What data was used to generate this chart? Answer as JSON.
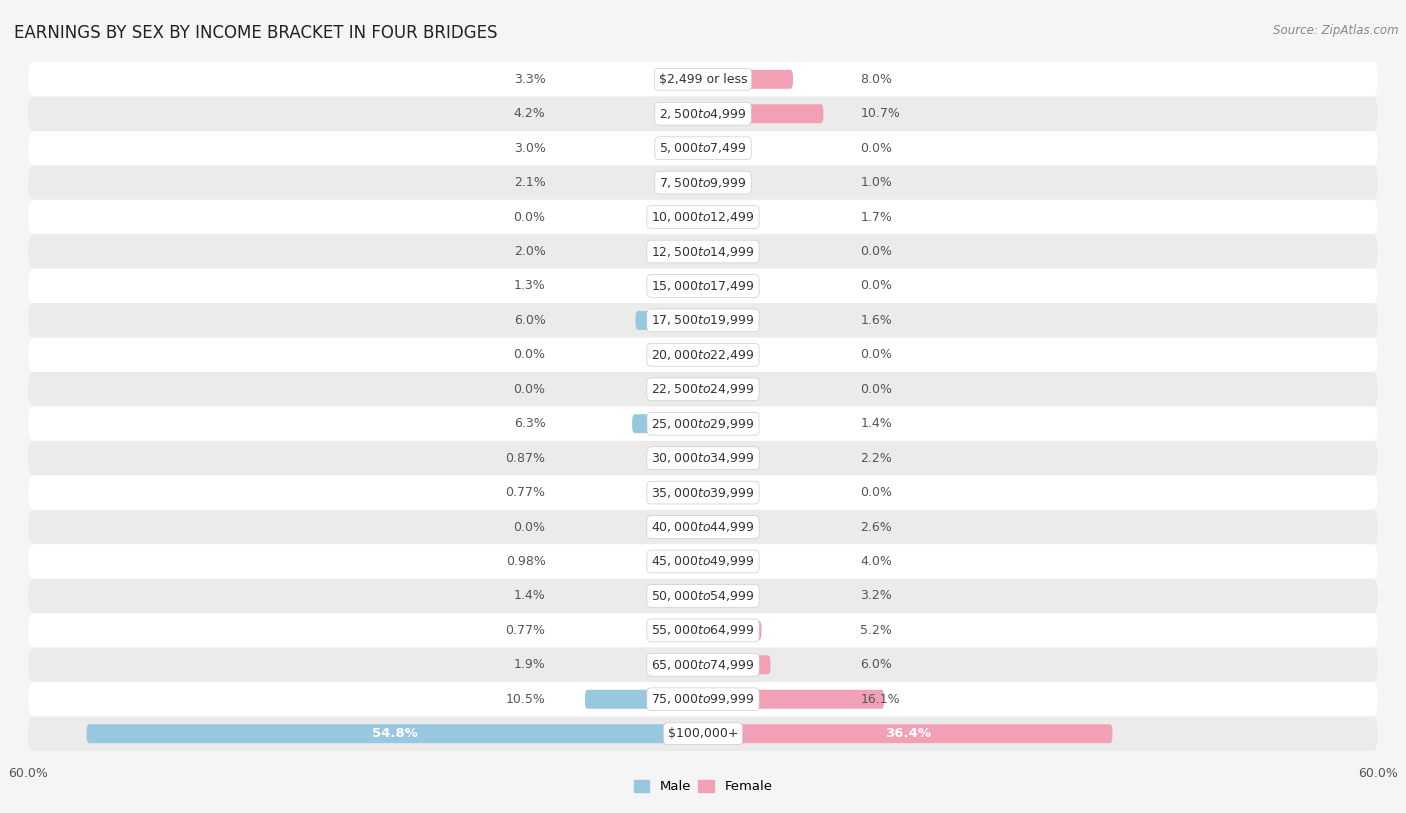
{
  "title": "EARNINGS BY SEX BY INCOME BRACKET IN FOUR BRIDGES",
  "source": "Source: ZipAtlas.com",
  "categories": [
    "$2,499 or less",
    "$2,500 to $4,999",
    "$5,000 to $7,499",
    "$7,500 to $9,999",
    "$10,000 to $12,499",
    "$12,500 to $14,999",
    "$15,000 to $17,499",
    "$17,500 to $19,999",
    "$20,000 to $22,499",
    "$22,500 to $24,999",
    "$25,000 to $29,999",
    "$30,000 to $34,999",
    "$35,000 to $39,999",
    "$40,000 to $44,999",
    "$45,000 to $49,999",
    "$50,000 to $54,999",
    "$55,000 to $64,999",
    "$65,000 to $74,999",
    "$75,000 to $99,999",
    "$100,000+"
  ],
  "male_values": [
    3.3,
    4.2,
    3.0,
    2.1,
    0.0,
    2.0,
    1.3,
    6.0,
    0.0,
    0.0,
    6.3,
    0.87,
    0.77,
    0.0,
    0.98,
    1.4,
    0.77,
    1.9,
    10.5,
    54.8
  ],
  "female_values": [
    8.0,
    10.7,
    0.0,
    1.0,
    1.7,
    0.0,
    0.0,
    1.6,
    0.0,
    0.0,
    1.4,
    2.2,
    0.0,
    2.6,
    4.0,
    3.2,
    5.2,
    6.0,
    16.1,
    36.4
  ],
  "male_color": "#97C8E0",
  "female_color": "#F2A0B5",
  "male_color_dark": "#5B9DC0",
  "female_color_dark": "#E07090",
  "axis_max": 60.0,
  "bar_height": 0.55,
  "title_fontsize": 12,
  "label_fontsize": 9,
  "category_fontsize": 9,
  "axis_label_fontsize": 9,
  "bg_white": "#ffffff",
  "bg_gray": "#ebebeb",
  "fig_bg": "#f5f5f5"
}
